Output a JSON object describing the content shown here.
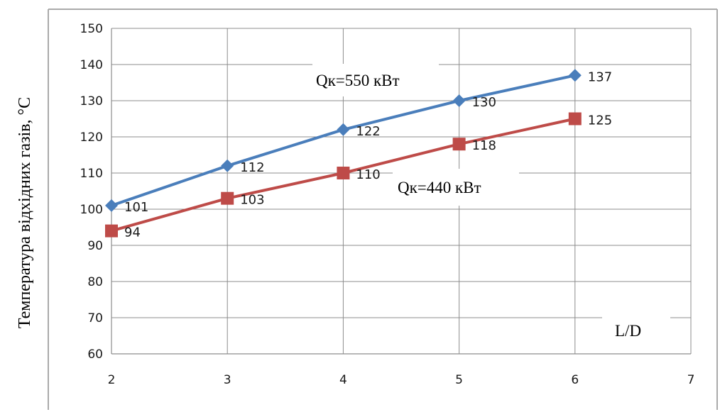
{
  "chart_data": {
    "type": "line",
    "xlabel": "L/D",
    "ylabel": "Температура відхідних газів, °C",
    "xlim": [
      2,
      7
    ],
    "ylim": [
      60,
      150
    ],
    "xticks": [
      "2",
      "3",
      "4",
      "5",
      "6",
      "7"
    ],
    "yticks": [
      "60",
      "70",
      "80",
      "90",
      "100",
      "110",
      "120",
      "130",
      "140",
      "150"
    ],
    "grid": true,
    "x": [
      2,
      3,
      4,
      5,
      6
    ],
    "series": [
      {
        "name": "Qк=550 кВт",
        "color": "#4a7ebb",
        "marker": "diamond",
        "values": [
          101,
          112,
          122,
          130,
          137
        ],
        "labels": [
          "101",
          "112",
          "122",
          "130",
          "137"
        ]
      },
      {
        "name": "Qк=440 кВт",
        "color": "#be4b48",
        "marker": "square",
        "values": [
          94,
          103,
          110,
          118,
          125
        ],
        "labels": [
          "94",
          "103",
          "110",
          "118",
          "125"
        ]
      }
    ]
  }
}
